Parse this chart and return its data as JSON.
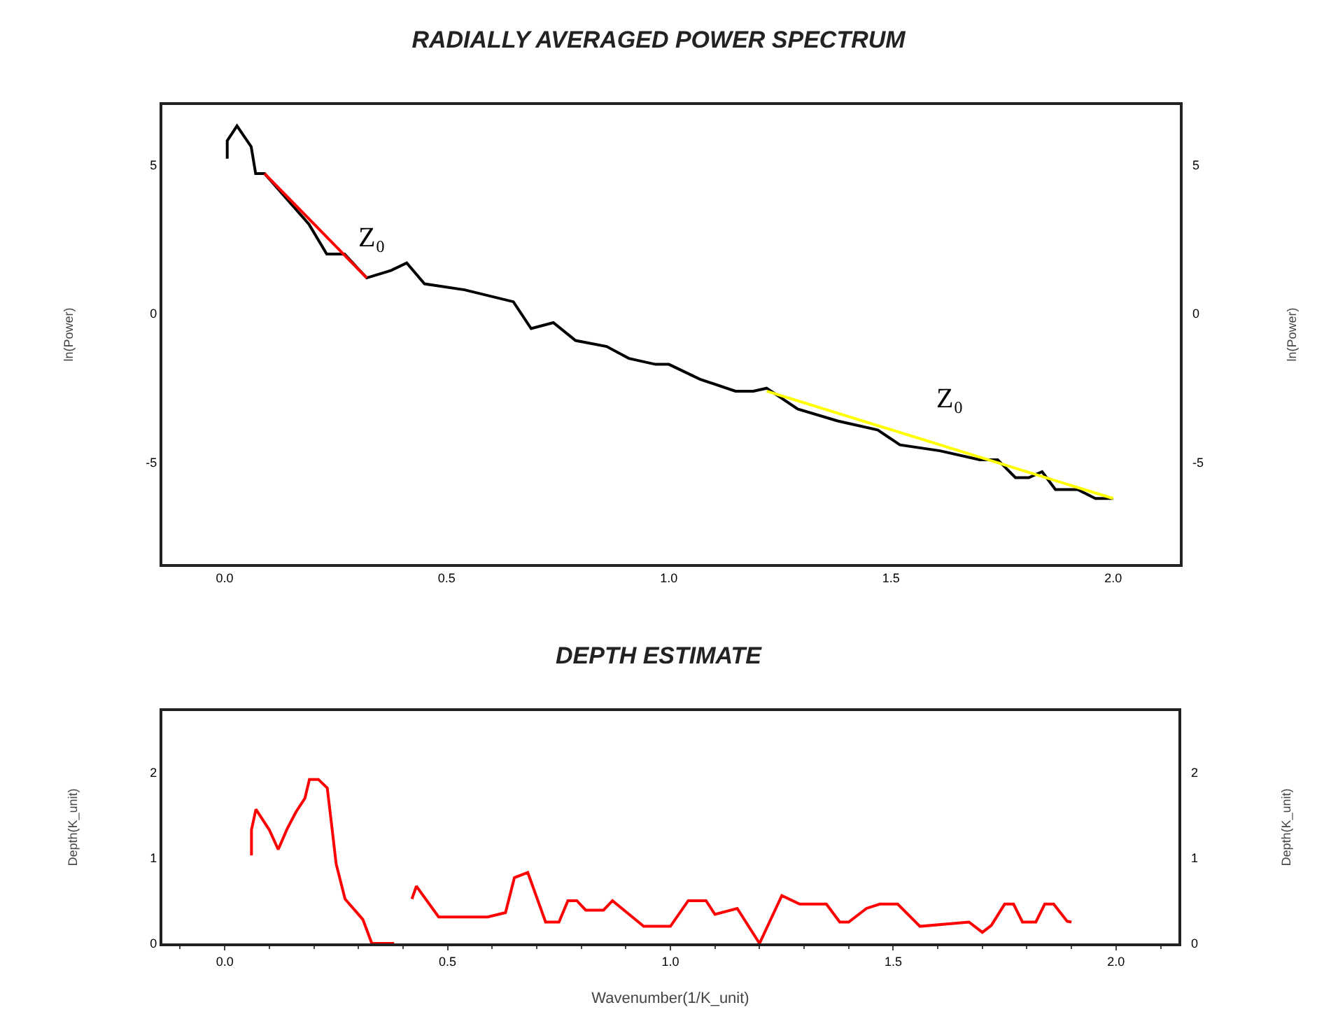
{
  "chart_data": [
    {
      "type": "line",
      "title": "RADIALLY AVERAGED POWER SPECTRUM",
      "ylabel": "ln(Power)",
      "y2label": "ln(Power)",
      "xlim": [
        -0.14,
        2.15
      ],
      "xticks": [
        {
          "value": 0,
          "label": "0.0"
        },
        {
          "value": 0.5,
          "label": "0.5"
        },
        {
          "value": 1,
          "label": "1.0"
        },
        {
          "value": 1.5,
          "label": "1.5"
        },
        {
          "value": 2,
          "label": "2.0"
        }
      ],
      "ylim": [
        -8.4,
        7
      ],
      "yticks": [
        -5,
        0,
        5
      ],
      "y2lim": [
        -8.4,
        7
      ],
      "y2ticks": [
        -5,
        0,
        5
      ],
      "series": [
        {
          "color": "#000000",
          "x": [
            0.006,
            0.006,
            0.028,
            0.06,
            0.07,
            0.09,
            0.19,
            0.23,
            0.27,
            0.32,
            0.375,
            0.41,
            0.45,
            0.54,
            0.65,
            0.69,
            0.74,
            0.79,
            0.86,
            0.91,
            0.97,
            1.0,
            1.07,
            1.15,
            1.19,
            1.22,
            1.29,
            1.38,
            1.47,
            1.52,
            1.61,
            1.7,
            1.74,
            1.78,
            1.81,
            1.84,
            1.87,
            1.92,
            1.96,
            2.0
          ],
          "values": [
            5.2,
            5.8,
            6.3,
            5.6,
            4.7,
            4.7,
            3.0,
            2.0,
            2.0,
            1.2,
            1.45,
            1.7,
            1.0,
            0.8,
            0.4,
            -0.5,
            -0.3,
            -0.9,
            -1.1,
            -1.5,
            -1.7,
            -1.7,
            -2.2,
            -2.6,
            -2.6,
            -2.5,
            -3.2,
            -3.6,
            -3.9,
            -4.4,
            -4.6,
            -4.9,
            -4.9,
            -5.5,
            -5.5,
            -5.3,
            -5.9,
            -5.9,
            -6.2,
            -6.2
          ]
        },
        {
          "color": "#ff0000",
          "x": [
            0.09,
            0.32
          ],
          "values": [
            4.7,
            1.2
          ]
        },
        {
          "color": "#ffff00",
          "x": [
            1.22,
            2.0
          ],
          "values": [
            -2.6,
            -6.2
          ]
        }
      ],
      "annotations": [
        "Z₀",
        "Z₀"
      ]
    },
    {
      "type": "line",
      "title": "DEPTH ESTIMATE",
      "xlabel": "Wavenumber(1/K_unit)",
      "ylabel": "Depth(K_unit)",
      "y2label": "Depth(K_unit)",
      "xlim": [
        -0.14,
        2.14
      ],
      "xticks": [
        {
          "value": 0,
          "label": "0.0"
        },
        {
          "value": 0.5,
          "label": "0.5"
        },
        {
          "value": 1,
          "label": "1.0"
        },
        {
          "value": 1.5,
          "label": "1.5"
        },
        {
          "value": 2,
          "label": "2.0"
        }
      ],
      "ylim": [
        0,
        2.72
      ],
      "yticks": [
        0,
        1,
        2
      ],
      "y2lim": [
        0,
        2.72
      ],
      "y2ticks": [
        0,
        1,
        2
      ],
      "series": [
        {
          "color": "#ff0000",
          "x": [
            0.06,
            0.06,
            0.07,
            0.1,
            0.12,
            0.14,
            0.16,
            0.18,
            0.19,
            0.21,
            0.23,
            0.24,
            0.25,
            0.27,
            0.31,
            0.33,
            0.38,
            0.4,
            0.42,
            0.43,
            0.48,
            0.59,
            0.63,
            0.65,
            0.68,
            0.72,
            0.75,
            0.77,
            0.79,
            0.81,
            0.85,
            0.87,
            0.94,
            1.0,
            1.04,
            1.08,
            1.1,
            1.15,
            1.2,
            1.25,
            1.29,
            1.35,
            1.38,
            1.4,
            1.44,
            1.47,
            1.51,
            1.56,
            1.67,
            1.7,
            1.72,
            1.75,
            1.77,
            1.79,
            1.82,
            1.84,
            1.86,
            1.89,
            1.9
          ],
          "values": [
            1.03,
            1.33,
            1.57,
            1.33,
            1.1,
            1.34,
            1.54,
            1.7,
            1.92,
            1.92,
            1.82,
            1.38,
            0.93,
            0.52,
            0.28,
            0,
            0,
            null,
            0.52,
            0.67,
            0.31,
            0.31,
            0.36,
            0.77,
            0.83,
            0.25,
            0.25,
            0.5,
            0.5,
            0.39,
            0.39,
            0.5,
            0.2,
            0.2,
            0.5,
            0.5,
            0.34,
            0.41,
            0,
            0.56,
            0.46,
            0.46,
            0.25,
            0.25,
            0.41,
            0.46,
            0.46,
            0.2,
            0.25,
            0.13,
            0.21,
            0.46,
            0.46,
            0.25,
            0.25,
            0.46,
            0.46,
            0.26,
            0.25
          ]
        }
      ]
    }
  ]
}
